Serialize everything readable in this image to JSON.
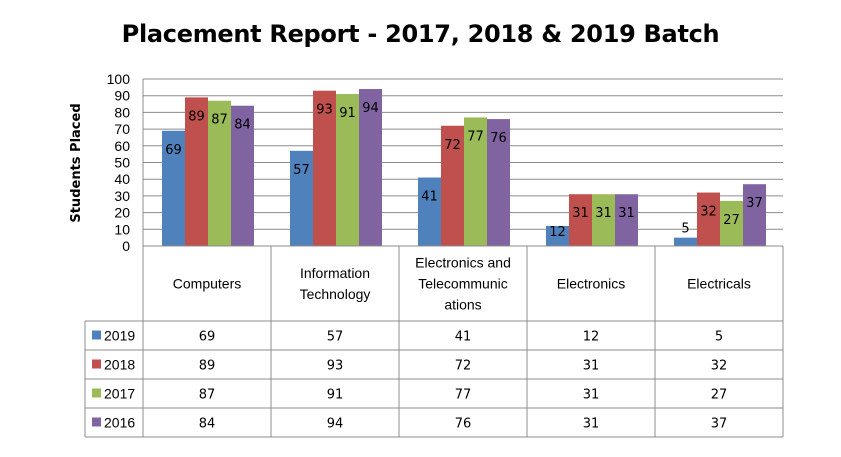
{
  "chart_data": {
    "type": "bar",
    "title": "Placement Report - 2017, 2018 & 2019 Batch",
    "ylabel": "Students Placed",
    "xlabel": "",
    "ylim": [
      0,
      100
    ],
    "yticks": [
      0,
      10,
      20,
      30,
      40,
      50,
      60,
      70,
      80,
      90,
      100
    ],
    "grid": true,
    "legend": "data-table",
    "categories": [
      [
        "Computers"
      ],
      [
        "Information",
        "Technology"
      ],
      [
        "Electronics and",
        "Telecommunic",
        "ations"
      ],
      [
        "Electronics"
      ],
      [
        "Electricals"
      ]
    ],
    "series": [
      {
        "name": "2019",
        "color": "#4f81bd",
        "values": [
          69,
          57,
          41,
          12,
          5
        ]
      },
      {
        "name": "2018",
        "color": "#c0504d",
        "values": [
          89,
          93,
          72,
          31,
          32
        ]
      },
      {
        "name": "2017",
        "color": "#9bbb59",
        "values": [
          87,
          91,
          77,
          31,
          27
        ]
      },
      {
        "name": "2016",
        "color": "#8064a2",
        "values": [
          84,
          94,
          76,
          31,
          37
        ]
      }
    ]
  }
}
